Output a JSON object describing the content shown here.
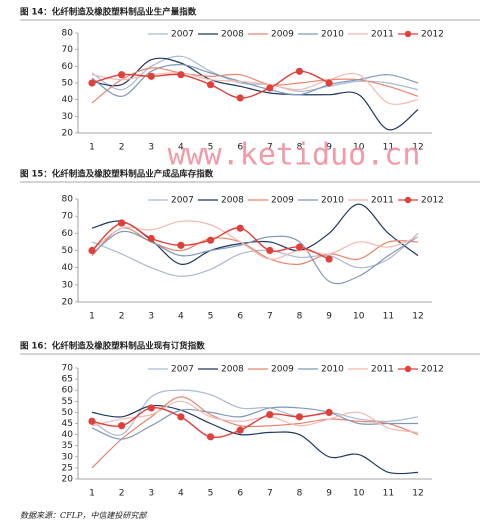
{
  "chart_data": [
    {
      "type": "line",
      "title": "图 14：化纤制造及橡胶塑料制品业生产量指数",
      "categories": [
        "1",
        "2",
        "3",
        "4",
        "5",
        "6",
        "7",
        "8",
        "9",
        "10",
        "11",
        "12"
      ],
      "ylim": [
        20,
        80
      ],
      "yticks": [
        20,
        30,
        40,
        50,
        60,
        70,
        80
      ],
      "grid": false,
      "legend": "top",
      "series": [
        {
          "name": "2007",
          "color": "#a9bad2",
          "values": [
            56,
            46,
            60,
            66,
            57,
            50,
            49,
            45,
            48,
            51,
            50,
            46
          ]
        },
        {
          "name": "2008",
          "color": "#1f3864",
          "values": [
            51,
            49,
            64,
            62,
            52,
            48,
            44,
            43,
            43,
            43,
            22,
            34
          ]
        },
        {
          "name": "2009",
          "color": "#e8836c",
          "values": [
            38,
            52,
            59,
            56,
            54,
            55,
            49,
            50,
            52,
            52,
            48,
            42
          ]
        },
        {
          "name": "2010",
          "color": "#7f99b8",
          "values": [
            53,
            42,
            57,
            61,
            56,
            51,
            46,
            43,
            49,
            52,
            55,
            50
          ]
        },
        {
          "name": "2011",
          "color": "#f4b8b0",
          "values": [
            55,
            52,
            55,
            56,
            52,
            51,
            49,
            46,
            52,
            55,
            38,
            40
          ]
        },
        {
          "name": "2012",
          "color": "#e0403a",
          "marker": true,
          "values": [
            50,
            55,
            54,
            55,
            49,
            41,
            47,
            57,
            50,
            null,
            null,
            null
          ]
        }
      ]
    },
    {
      "type": "line",
      "title": "图 15：化纤制造及橡胶塑料制品业产成品库存指数",
      "categories": [
        "1",
        "2",
        "3",
        "4",
        "5",
        "6",
        "7",
        "8",
        "9",
        "10",
        "11",
        "12"
      ],
      "ylim": [
        20,
        80
      ],
      "yticks": [
        20,
        30,
        40,
        50,
        60,
        70,
        80
      ],
      "grid": false,
      "legend": "top",
      "series": [
        {
          "name": "2007",
          "color": "#a9bad2",
          "values": [
            55,
            48,
            40,
            35,
            39,
            48,
            50,
            46,
            47,
            40,
            45,
            60
          ]
        },
        {
          "name": "2008",
          "color": "#1f3864",
          "values": [
            63,
            67,
            56,
            42,
            50,
            54,
            55,
            50,
            60,
            77,
            60,
            47
          ]
        },
        {
          "name": "2009",
          "color": "#e8836c",
          "values": [
            47,
            63,
            55,
            50,
            57,
            55,
            45,
            42,
            48,
            45,
            55,
            55
          ]
        },
        {
          "name": "2010",
          "color": "#7f99b8",
          "values": [
            48,
            61,
            55,
            47,
            50,
            53,
            58,
            55,
            32,
            35,
            47,
            58
          ]
        },
        {
          "name": "2011",
          "color": "#f4b8b0",
          "values": [
            50,
            63,
            62,
            67,
            65,
            55,
            45,
            50,
            48,
            55,
            52,
            58
          ]
        },
        {
          "name": "2012",
          "color": "#e0403a",
          "marker": true,
          "values": [
            50,
            66,
            57,
            53,
            56,
            63,
            50,
            52,
            45,
            null,
            null,
            null
          ]
        }
      ]
    },
    {
      "type": "line",
      "title": "图 16：化纤制造及橡胶塑料制品业现有订货指数",
      "categories": [
        "1",
        "2",
        "3",
        "4",
        "5",
        "6",
        "7",
        "8",
        "9",
        "10",
        "11",
        "12"
      ],
      "ylim": [
        20,
        70
      ],
      "yticks": [
        20,
        25,
        30,
        35,
        40,
        45,
        50,
        55,
        60,
        65,
        70
      ],
      "grid": false,
      "legend": "top",
      "series": [
        {
          "name": "2007",
          "color": "#a9bad2",
          "values": [
            46,
            40,
            57,
            60,
            58,
            52,
            52,
            48,
            50,
            47,
            46,
            48
          ]
        },
        {
          "name": "2008",
          "color": "#1f3864",
          "values": [
            50,
            48,
            53,
            51,
            45,
            40,
            41,
            40,
            30,
            31,
            23,
            23
          ]
        },
        {
          "name": "2009",
          "color": "#e8836c",
          "values": [
            25,
            38,
            48,
            57,
            49,
            44,
            44,
            45,
            47,
            46,
            45,
            40
          ]
        },
        {
          "name": "2010",
          "color": "#7f99b8",
          "values": [
            43,
            38,
            44,
            51,
            50,
            48,
            52,
            52,
            50,
            45,
            45,
            45
          ]
        },
        {
          "name": "2011",
          "color": "#f4b8b0",
          "values": [
            44,
            47,
            49,
            55,
            48,
            46,
            48,
            44,
            47,
            50,
            43,
            41
          ]
        },
        {
          "name": "2012",
          "color": "#e0403a",
          "marker": true,
          "values": [
            46,
            44,
            52,
            48,
            39,
            42,
            49,
            48,
            50,
            null,
            null,
            null
          ]
        }
      ]
    }
  ],
  "watermark": "www.ketiduo.cn",
  "source": "数据来源：CFLP，中信建投研究部"
}
